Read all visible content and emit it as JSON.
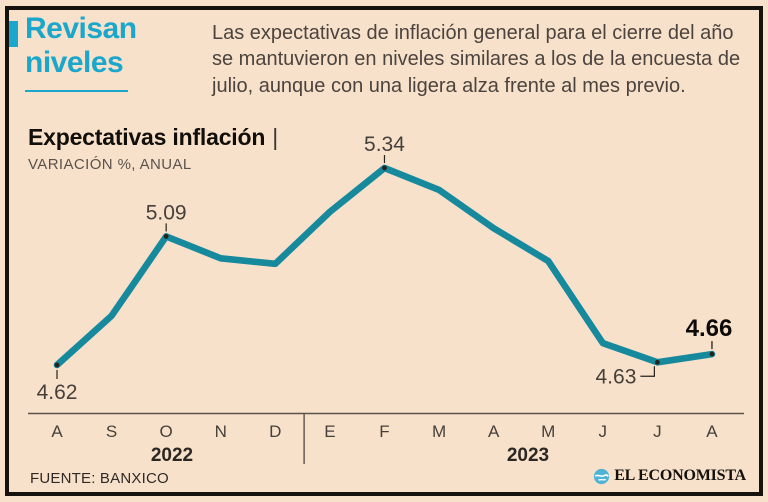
{
  "page": {
    "background": "#f8e1cb",
    "frame_color": "#16120d",
    "accent_cyan": "#1aa7cb"
  },
  "header": {
    "title": "Revisan niveles",
    "description": "Las expectativas de inflación general para el cierre del año se mantuvieron en niveles similares a los de la encuesta de julio, aunque con una ligera alza frente al mes previo."
  },
  "chart": {
    "title": "Expectativas inflación",
    "separator": "|",
    "subtitle": "VARIACIÓN %, ANUAL"
  },
  "chart_data": {
    "type": "line",
    "title": "Expectativas inflación",
    "ylabel": "VARIACIÓN %, ANUAL",
    "categories": [
      "A",
      "S",
      "O",
      "N",
      "D",
      "E",
      "F",
      "M",
      "A",
      "M",
      "J",
      "J",
      "A"
    ],
    "values": [
      4.62,
      4.8,
      5.09,
      5.01,
      4.99,
      5.18,
      5.34,
      5.26,
      5.12,
      5.0,
      4.7,
      4.63,
      4.66
    ],
    "labeled_points": [
      {
        "index": 0,
        "label": "4.62",
        "pos": "below"
      },
      {
        "index": 2,
        "label": "5.09",
        "pos": "above"
      },
      {
        "index": 6,
        "label": "5.34",
        "pos": "above"
      },
      {
        "index": 11,
        "label": "4.63",
        "pos": "callout-left"
      },
      {
        "index": 12,
        "label": "4.66",
        "pos": "above-bold"
      }
    ],
    "year_groups": [
      {
        "label": "2022",
        "from_index": 0,
        "to_index": 4
      },
      {
        "label": "2023",
        "from_index": 5,
        "to_index": 12
      }
    ],
    "line_color": "#16899d",
    "axis_color": "#5a534c",
    "label_color": "#46403a",
    "bold_label_color": "#0c0a07",
    "ylim": [
      4.45,
      5.45
    ],
    "grid": false,
    "legend": false
  },
  "footer": {
    "source": "FUENTE: BANXICO",
    "brand": "EL ECONOMISTA"
  }
}
